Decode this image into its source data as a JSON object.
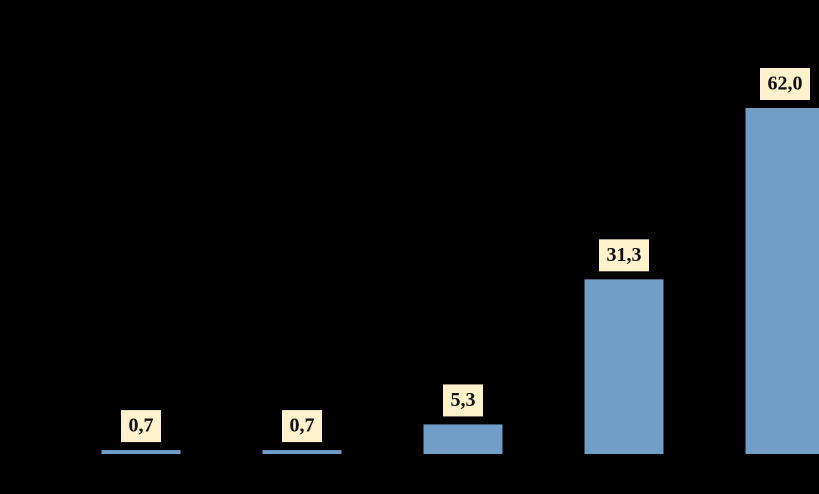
{
  "chart_data": {
    "type": "bar",
    "values": [
      0.7,
      0.7,
      5.3,
      31.3,
      62.0
    ],
    "value_labels": [
      "0,7",
      "0,7",
      "5,3",
      "31,3",
      "62,0"
    ],
    "color": "#709ec6"
  }
}
